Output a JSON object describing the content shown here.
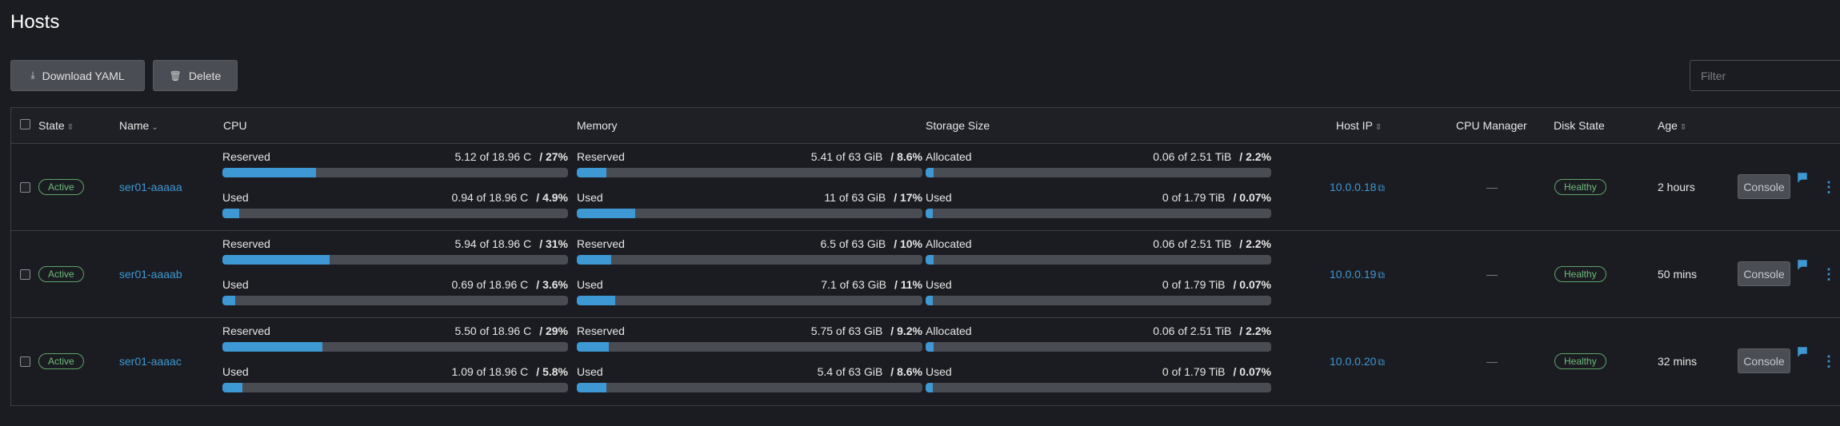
{
  "page": {
    "title": "Hosts"
  },
  "toolbar": {
    "download_label": "Download YAML",
    "delete_label": "Delete"
  },
  "filter": {
    "placeholder": "Filter"
  },
  "columns": {
    "state": "State",
    "name": "Name",
    "cpu": "CPU",
    "memory": "Memory",
    "storage": "Storage Size",
    "host_ip": "Host IP",
    "cpu_manager": "CPU Manager",
    "disk_state": "Disk State",
    "age": "Age"
  },
  "colors": {
    "accent": "#3d98d3",
    "healthy": "#6fbb7b",
    "bar_track": "#4a4c54"
  },
  "rows": [
    {
      "state": "Active",
      "name": "ser01-aaaaa",
      "cpu_reserved": {
        "label": "Reserved",
        "amount": "5.12 of 18.96 C",
        "pct": "/ 27%",
        "value": 27
      },
      "cpu_used": {
        "label": "Used",
        "amount": "0.94 of 18.96 C",
        "pct": "/ 4.9%",
        "value": 4.9
      },
      "mem_reserved": {
        "label": "Reserved",
        "amount": "5.41 of 63 GiB",
        "pct": "/ 8.6%",
        "value": 8.6
      },
      "mem_used": {
        "label": "Used",
        "amount": "11 of 63 GiB",
        "pct": "/ 17%",
        "value": 17
      },
      "sto_allocated": {
        "label": "Allocated",
        "amount": "0.06 of 2.51 TiB",
        "pct": "/ 2.2%",
        "value": 2.2
      },
      "sto_used": {
        "label": "Used",
        "amount": "0 of 1.79 TiB",
        "pct": "/ 0.07%",
        "value": 0.07
      },
      "host_ip": "10.0.0.18",
      "cpu_manager": "—",
      "disk_state": "Healthy",
      "age": "2 hours",
      "console": "Console"
    },
    {
      "state": "Active",
      "name": "ser01-aaaab",
      "cpu_reserved": {
        "label": "Reserved",
        "amount": "5.94 of 18.96 C",
        "pct": "/ 31%",
        "value": 31
      },
      "cpu_used": {
        "label": "Used",
        "amount": "0.69 of 18.96 C",
        "pct": "/ 3.6%",
        "value": 3.6
      },
      "mem_reserved": {
        "label": "Reserved",
        "amount": "6.5 of 63 GiB",
        "pct": "/ 10%",
        "value": 10
      },
      "mem_used": {
        "label": "Used",
        "amount": "7.1 of 63 GiB",
        "pct": "/ 11%",
        "value": 11
      },
      "sto_allocated": {
        "label": "Allocated",
        "amount": "0.06 of 2.51 TiB",
        "pct": "/ 2.2%",
        "value": 2.2
      },
      "sto_used": {
        "label": "Used",
        "amount": "0 of 1.79 TiB",
        "pct": "/ 0.07%",
        "value": 0.07
      },
      "host_ip": "10.0.0.19",
      "cpu_manager": "—",
      "disk_state": "Healthy",
      "age": "50 mins",
      "console": "Console"
    },
    {
      "state": "Active",
      "name": "ser01-aaaac",
      "cpu_reserved": {
        "label": "Reserved",
        "amount": "5.50 of 18.96 C",
        "pct": "/ 29%",
        "value": 29
      },
      "cpu_used": {
        "label": "Used",
        "amount": "1.09 of 18.96 C",
        "pct": "/ 5.8%",
        "value": 5.8
      },
      "mem_reserved": {
        "label": "Reserved",
        "amount": "5.75 of 63 GiB",
        "pct": "/ 9.2%",
        "value": 9.2
      },
      "mem_used": {
        "label": "Used",
        "amount": "5.4 of 63 GiB",
        "pct": "/ 8.6%",
        "value": 8.6
      },
      "sto_allocated": {
        "label": "Allocated",
        "amount": "0.06 of 2.51 TiB",
        "pct": "/ 2.2%",
        "value": 2.2
      },
      "sto_used": {
        "label": "Used",
        "amount": "0 of 1.79 TiB",
        "pct": "/ 0.07%",
        "value": 0.07
      },
      "host_ip": "10.0.0.20",
      "cpu_manager": "—",
      "disk_state": "Healthy",
      "age": "32 mins",
      "console": "Console"
    }
  ]
}
